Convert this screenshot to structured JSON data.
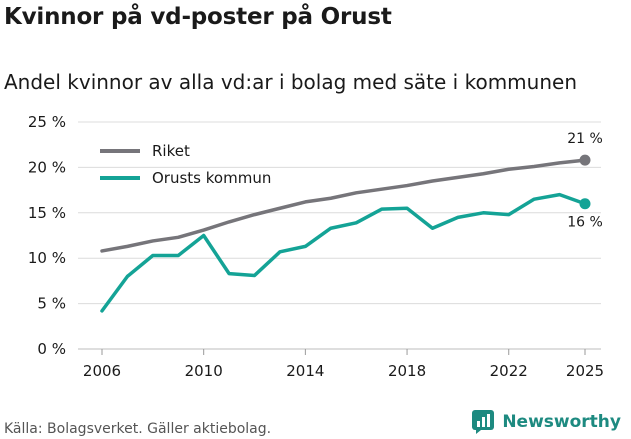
{
  "title": "Kvinnor på vd-poster på Orust",
  "subtitle": "Andel kvinnor av alla vd:ar i bolag med säte i kommunen",
  "source": "Källa: Bolagsverket. Gäller aktiebolag.",
  "brand": "Newsworthy",
  "colors": {
    "riket": "#76757a",
    "orust": "#14a396",
    "grid": "#dcdcdc"
  },
  "chart_data": {
    "type": "line",
    "x": [
      2006,
      2007,
      2008,
      2009,
      2010,
      2011,
      2012,
      2013,
      2014,
      2015,
      2016,
      2017,
      2018,
      2019,
      2020,
      2021,
      2022,
      2023,
      2024,
      2025
    ],
    "series": [
      {
        "name": "Riket",
        "values": [
          10.8,
          11.3,
          11.9,
          12.3,
          13.1,
          14.0,
          14.8,
          15.5,
          16.2,
          16.6,
          17.2,
          17.6,
          18.0,
          18.5,
          18.9,
          19.3,
          19.8,
          20.1,
          20.5,
          20.8
        ],
        "end_label": "21 %"
      },
      {
        "name": "Orusts kommun",
        "values": [
          4.2,
          8.0,
          10.3,
          10.3,
          12.5,
          8.3,
          8.1,
          10.7,
          11.3,
          13.3,
          13.9,
          15.4,
          15.5,
          13.3,
          14.5,
          15.0,
          14.8,
          16.5,
          17.0,
          16.0
        ],
        "end_label": "16 %"
      }
    ],
    "yticks": [
      "0 %",
      "5 %",
      "10 %",
      "15 %",
      "20 %",
      "25 %"
    ],
    "ytick_values": [
      0,
      5,
      10,
      15,
      20,
      25
    ],
    "xticks": [
      "2006",
      "2010",
      "2014",
      "2018",
      "2022",
      "2025"
    ],
    "xtick_values": [
      2006,
      2010,
      2014,
      2018,
      2022,
      2025
    ],
    "ylim": [
      0,
      25
    ],
    "xlim": [
      2006,
      2025
    ],
    "xlabel": "",
    "ylabel": "",
    "legend": "top-left"
  }
}
